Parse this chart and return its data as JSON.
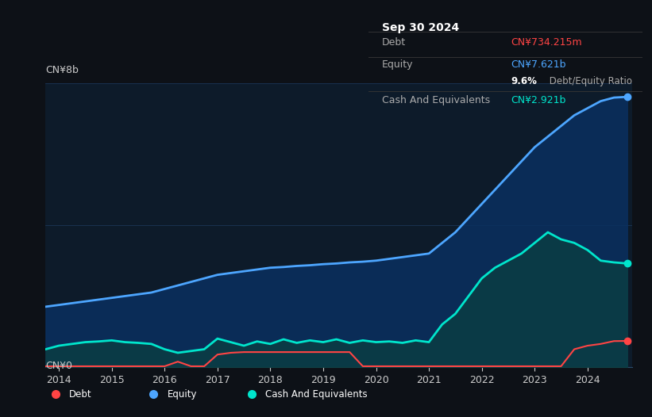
{
  "background_color": "#0d1117",
  "plot_bg_color": "#0d1b2a",
  "title_box": {
    "date": "Sep 30 2024",
    "debt_label": "Debt",
    "debt_value": "CN¥734.215m",
    "debt_color": "#ff4444",
    "equity_label": "Equity",
    "equity_value": "CN¥7.621b",
    "equity_color": "#4da6ff",
    "ratio_text": "9.6% Debt/Equity Ratio",
    "ratio_bold": "9.6%",
    "cash_label": "Cash And Equivalents",
    "cash_value": "CN¥2.921b",
    "cash_color": "#00e5cc"
  },
  "y_label_top": "CN¥8b",
  "y_label_bottom": "CN¥0",
  "x_ticks": [
    "2014",
    "2015",
    "2016",
    "2017",
    "2018",
    "2019",
    "2020",
    "2021",
    "2022",
    "2023",
    "2024"
  ],
  "legend": [
    {
      "label": "Debt",
      "color": "#ff4444"
    },
    {
      "label": "Equity",
      "color": "#4da6ff"
    },
    {
      "label": "Cash And Equivalents",
      "color": "#00e5cc"
    }
  ],
  "equity_color": "#4da6ff",
  "equity_fill": "#0a3060",
  "debt_color": "#ff4444",
  "cash_color": "#00e5cc",
  "cash_fill": "#0a4040",
  "grid_color": "#1e3a5f",
  "text_color": "#cccccc",
  "ylim": [
    0,
    8
  ],
  "equity_data": {
    "x": [
      2013.75,
      2014.0,
      2014.25,
      2014.5,
      2014.75,
      2015.0,
      2015.25,
      2015.5,
      2015.75,
      2016.0,
      2016.25,
      2016.5,
      2016.75,
      2017.0,
      2017.25,
      2017.5,
      2017.75,
      2018.0,
      2018.25,
      2018.5,
      2018.75,
      2019.0,
      2019.25,
      2019.5,
      2019.75,
      2020.0,
      2020.25,
      2020.5,
      2020.75,
      2021.0,
      2021.25,
      2021.5,
      2021.75,
      2022.0,
      2022.25,
      2022.5,
      2022.75,
      2023.0,
      2023.25,
      2023.5,
      2023.75,
      2024.0,
      2024.25,
      2024.5,
      2024.75
    ],
    "y": [
      1.7,
      1.75,
      1.8,
      1.85,
      1.9,
      1.95,
      2.0,
      2.05,
      2.1,
      2.2,
      2.3,
      2.4,
      2.5,
      2.6,
      2.65,
      2.7,
      2.75,
      2.8,
      2.82,
      2.85,
      2.87,
      2.9,
      2.92,
      2.95,
      2.97,
      3.0,
      3.05,
      3.1,
      3.15,
      3.2,
      3.5,
      3.8,
      4.2,
      4.6,
      5.0,
      5.4,
      5.8,
      6.2,
      6.5,
      6.8,
      7.1,
      7.3,
      7.5,
      7.6,
      7.62
    ]
  },
  "debt_data": {
    "x": [
      2013.75,
      2014.0,
      2014.25,
      2014.5,
      2014.75,
      2015.0,
      2015.25,
      2015.5,
      2015.75,
      2016.0,
      2016.25,
      2016.5,
      2016.75,
      2017.0,
      2017.25,
      2017.5,
      2017.75,
      2018.0,
      2018.25,
      2018.5,
      2018.75,
      2019.0,
      2019.25,
      2019.5,
      2019.75,
      2020.0,
      2020.25,
      2020.5,
      2020.75,
      2021.0,
      2021.25,
      2021.5,
      2021.75,
      2022.0,
      2022.25,
      2022.5,
      2022.75,
      2023.0,
      2023.25,
      2023.5,
      2023.75,
      2024.0,
      2024.25,
      2024.5,
      2024.75
    ],
    "y": [
      0.02,
      0.02,
      0.02,
      0.02,
      0.02,
      0.02,
      0.02,
      0.02,
      0.02,
      0.02,
      0.15,
      0.02,
      0.02,
      0.35,
      0.4,
      0.42,
      0.42,
      0.42,
      0.42,
      0.42,
      0.42,
      0.42,
      0.42,
      0.42,
      0.02,
      0.02,
      0.02,
      0.02,
      0.02,
      0.02,
      0.02,
      0.02,
      0.02,
      0.02,
      0.02,
      0.02,
      0.02,
      0.02,
      0.02,
      0.02,
      0.5,
      0.6,
      0.65,
      0.73,
      0.734
    ]
  },
  "cash_data": {
    "x": [
      2013.75,
      2014.0,
      2014.25,
      2014.5,
      2014.75,
      2015.0,
      2015.25,
      2015.5,
      2015.75,
      2016.0,
      2016.25,
      2016.5,
      2016.75,
      2017.0,
      2017.25,
      2017.5,
      2017.75,
      2018.0,
      2018.25,
      2018.5,
      2018.75,
      2019.0,
      2019.25,
      2019.5,
      2019.75,
      2020.0,
      2020.25,
      2020.5,
      2020.75,
      2021.0,
      2021.25,
      2021.5,
      2021.75,
      2022.0,
      2022.25,
      2022.5,
      2022.75,
      2023.0,
      2023.25,
      2023.5,
      2023.75,
      2024.0,
      2024.25,
      2024.5,
      2024.75
    ],
    "y": [
      0.5,
      0.6,
      0.65,
      0.7,
      0.72,
      0.75,
      0.7,
      0.68,
      0.65,
      0.5,
      0.4,
      0.45,
      0.5,
      0.8,
      0.7,
      0.6,
      0.72,
      0.65,
      0.78,
      0.68,
      0.75,
      0.7,
      0.78,
      0.68,
      0.75,
      0.7,
      0.72,
      0.68,
      0.75,
      0.7,
      1.2,
      1.5,
      2.0,
      2.5,
      2.8,
      3.0,
      3.2,
      3.5,
      3.8,
      3.6,
      3.5,
      3.3,
      3.0,
      2.95,
      2.921
    ]
  }
}
